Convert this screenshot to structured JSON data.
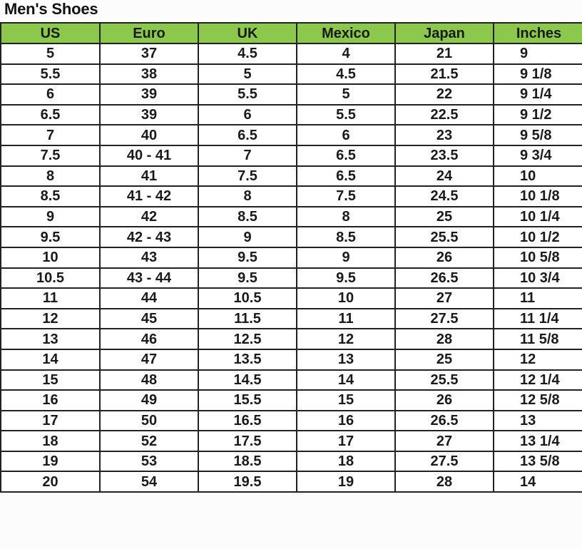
{
  "title": "Men's Shoes",
  "colors": {
    "header_bg": "#8cc84b"
  },
  "columns": [
    "US",
    "Euro",
    "UK",
    "Mexico",
    "Japan",
    "Inches"
  ],
  "rows": [
    [
      "5",
      "37",
      "4.5",
      "4",
      "21",
      "9"
    ],
    [
      "5.5",
      "38",
      "5",
      "4.5",
      "21.5",
      "9 1/8"
    ],
    [
      "6",
      "39",
      "5.5",
      "5",
      "22",
      "9 1/4"
    ],
    [
      "6.5",
      "39",
      "6",
      "5.5",
      "22.5",
      "9 1/2"
    ],
    [
      "7",
      "40",
      "6.5",
      "6",
      "23",
      "9 5/8"
    ],
    [
      "7.5",
      "40 - 41",
      "7",
      "6.5",
      "23.5",
      "9 3/4"
    ],
    [
      "8",
      "41",
      "7.5",
      "6.5",
      "24",
      "10"
    ],
    [
      "8.5",
      "41 - 42",
      "8",
      "7.5",
      "24.5",
      "10 1/8"
    ],
    [
      "9",
      "42",
      "8.5",
      "8",
      "25",
      "10 1/4"
    ],
    [
      "9.5",
      "42 - 43",
      "9",
      "8.5",
      "25.5",
      "10 1/2"
    ],
    [
      "10",
      "43",
      "9.5",
      "9",
      "26",
      "10 5/8"
    ],
    [
      "10.5",
      "43 - 44",
      "9.5",
      "9.5",
      "26.5",
      "10 3/4"
    ],
    [
      "11",
      "44",
      "10.5",
      "10",
      "27",
      "11"
    ],
    [
      "12",
      "45",
      "11.5",
      "11",
      "27.5",
      "11 1/4"
    ],
    [
      "13",
      "46",
      "12.5",
      "12",
      "28",
      "11 5/8"
    ],
    [
      "14",
      "47",
      "13.5",
      "13",
      "25",
      "12"
    ],
    [
      "15",
      "48",
      "14.5",
      "14",
      "25.5",
      "12 1/4"
    ],
    [
      "16",
      "49",
      "15.5",
      "15",
      "26",
      "12 5/8"
    ],
    [
      "17",
      "50",
      "16.5",
      "16",
      "26.5",
      "13"
    ],
    [
      "18",
      "52",
      "17.5",
      "17",
      "27",
      "13 1/4"
    ],
    [
      "19",
      "53",
      "18.5",
      "18",
      "27.5",
      "13 5/8"
    ],
    [
      "20",
      "54",
      "19.5",
      "19",
      "28",
      "14"
    ]
  ]
}
